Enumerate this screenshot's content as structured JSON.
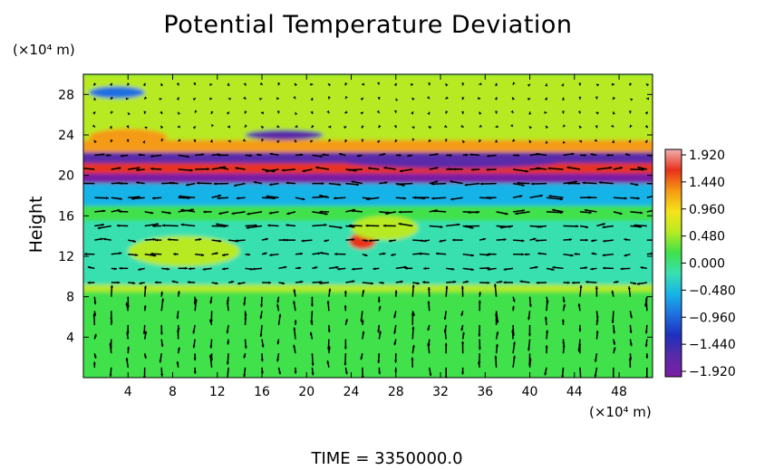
{
  "chart_data": {
    "type": "heatmap",
    "title": "Potential Temperature Deviation",
    "ylabel": "Height",
    "y_unit": "(×10⁴ m)",
    "x_unit": "(×10⁴ m)",
    "x_ticks": [
      "4",
      "8",
      "12",
      "16",
      "20",
      "24",
      "28",
      "32",
      "36",
      "40",
      "44",
      "48"
    ],
    "y_ticks": [
      "4",
      "8",
      "12",
      "16",
      "20",
      "24",
      "28"
    ],
    "xlim": [
      0,
      51
    ],
    "ylim": [
      0,
      30
    ],
    "colorbar": {
      "ticks": [
        "1.920",
        "1.440",
        "0.960",
        "0.480",
        "0.000",
        "−0.480",
        "−0.960",
        "−1.440",
        "−1.920"
      ],
      "range": [
        -1.92,
        1.92
      ]
    },
    "field_bands": [
      {
        "y0": 0,
        "y1": 8.5,
        "value": 0.1
      },
      {
        "y0": 8.5,
        "y1": 9.2,
        "value": 0.55
      },
      {
        "y0": 9.2,
        "y1": 15.5,
        "value": -0.05
      },
      {
        "y0": 15.5,
        "y1": 17,
        "value": 0.3
      },
      {
        "y0": 17,
        "y1": 19.2,
        "value": -0.35
      },
      {
        "y0": 19.2,
        "y1": 20.2,
        "value": -1.8
      },
      {
        "y0": 20.2,
        "y1": 21.2,
        "value": 1.7
      },
      {
        "y0": 21.2,
        "y1": 22.3,
        "value": -1.5
      },
      {
        "y0": 22.3,
        "y1": 23.5,
        "value": 1.1
      },
      {
        "y0": 23.5,
        "y1": 30,
        "value": 0.35
      }
    ],
    "field_features": [
      {
        "x": 3,
        "y": 28.2,
        "rx": 2.5,
        "ry": 0.6,
        "value": -0.9
      },
      {
        "x": 4,
        "y": 23.8,
        "rx": 3.5,
        "ry": 0.8,
        "value": 1.3
      },
      {
        "x": 18,
        "y": 24.0,
        "rx": 3.5,
        "ry": 0.5,
        "value": -1.5
      },
      {
        "x": 33,
        "y": 26.5,
        "rx": 6,
        "ry": 2.5,
        "value": 0.6
      },
      {
        "x": 33,
        "y": 21.4,
        "rx": 10,
        "ry": 0.7,
        "value": -1.6
      },
      {
        "x": 25,
        "y": 13.5,
        "rx": 1.2,
        "ry": 0.8,
        "value": 1.4
      },
      {
        "x": 27,
        "y": 14.8,
        "rx": 3,
        "ry": 1.2,
        "value": 0.5
      },
      {
        "x": 9,
        "y": 12.5,
        "rx": 5,
        "ry": 1.5,
        "value": 0.4
      },
      {
        "x": 20,
        "y": 11.0,
        "rx": 6,
        "ry": 0.6,
        "value": -0.3
      }
    ],
    "time_label": "TIME  =  3350000.0"
  },
  "colors": {
    "scale": [
      "#7a1fa2",
      "#5a2aa8",
      "#1e2fbd",
      "#1f6fe0",
      "#16b3e8",
      "#39e0b0",
      "#3fe14b",
      "#b7ea22",
      "#f5e21a",
      "#f59a14",
      "#e8311a",
      "#f0b0b0"
    ],
    "arrow": "#000000"
  }
}
